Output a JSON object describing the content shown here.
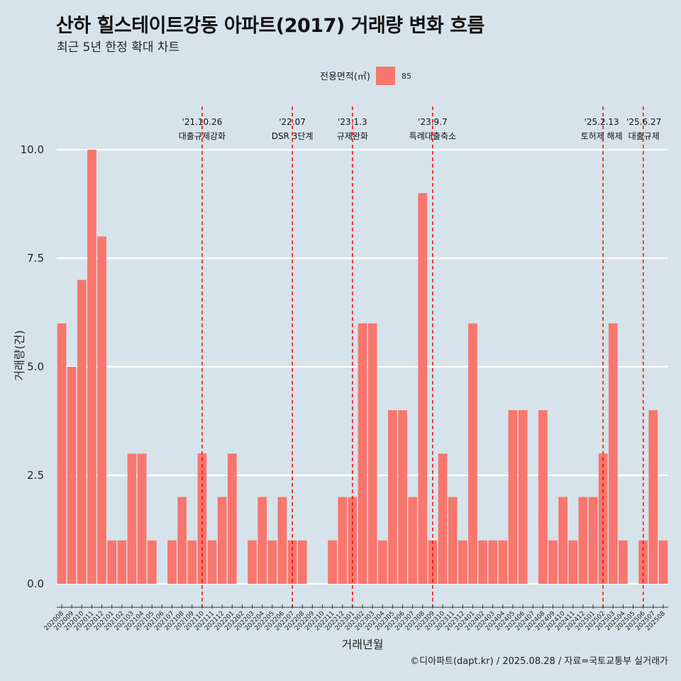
{
  "title": "산하 힐스테이트강동 아파트(2017) 거래량 변화 흐름",
  "subtitle": "최근 5년 한정 확대 차트",
  "caption": "©디아파트(dapt.kr) / 2025.08.28 / 자료=국토교통부 실거래가",
  "colors": {
    "background": "#d6e3ea",
    "bar": "#f8766d",
    "event_line": "#ff0000",
    "grid": "#ffffff"
  },
  "chart_data": {
    "type": "bar",
    "xlabel": "거래년월",
    "ylabel": "거래량(건)",
    "ylim": [
      0,
      10
    ],
    "y_ticks": [
      "0.0",
      "2.5",
      "5.0",
      "7.5",
      "10.0"
    ],
    "grid": true,
    "legend": {
      "title": "전용면적(㎡)",
      "position": "top",
      "entries": [
        "85"
      ]
    },
    "categories": [
      "202008",
      "202009",
      "202010",
      "202011",
      "202012",
      "202101",
      "202102",
      "202103",
      "202104",
      "202105",
      "202106",
      "202107",
      "202108",
      "202109",
      "202110",
      "202111",
      "202112",
      "202201",
      "202202",
      "202203",
      "202204",
      "202205",
      "202206",
      "202207",
      "202208",
      "202209",
      "202210",
      "202211",
      "202212",
      "202301",
      "202302",
      "202303",
      "202304",
      "202305",
      "202306",
      "202307",
      "202308",
      "202309",
      "202310",
      "202311",
      "202312",
      "202401",
      "202402",
      "202403",
      "202404",
      "202405",
      "202406",
      "202407",
      "202408",
      "202409",
      "202410",
      "202411",
      "202412",
      "202501",
      "202502",
      "202503",
      "202504",
      "202505",
      "202506",
      "202507",
      "202508"
    ],
    "series": [
      {
        "name": "85",
        "values": [
          6,
          5,
          7,
          10,
          8,
          1,
          1,
          3,
          3,
          1,
          0,
          1,
          2,
          1,
          3,
          1,
          2,
          3,
          0,
          1,
          2,
          1,
          2,
          1,
          1,
          0,
          0,
          1,
          2,
          2,
          6,
          6,
          1,
          4,
          4,
          2,
          9,
          1,
          3,
          2,
          1,
          6,
          1,
          1,
          1,
          4,
          4,
          0,
          4,
          1,
          2,
          1,
          2,
          2,
          3,
          6,
          1,
          0,
          1,
          4,
          1
        ]
      }
    ],
    "events": [
      {
        "date": "'21.10.26",
        "label": "대출규제강화",
        "category": "202110"
      },
      {
        "date": "'22.07",
        "label": "DSR 3단계",
        "category": "202207"
      },
      {
        "date": "'23.1.3",
        "label": "규제완화",
        "category": "202301"
      },
      {
        "date": "'23.9.7",
        "label": "특례대출축소",
        "category": "202309"
      },
      {
        "date": "'25.2.13",
        "label": "토허제 해제",
        "category": "202502"
      },
      {
        "date": "'25.6.27",
        "label": "대출규제",
        "category": "202506"
      }
    ]
  }
}
